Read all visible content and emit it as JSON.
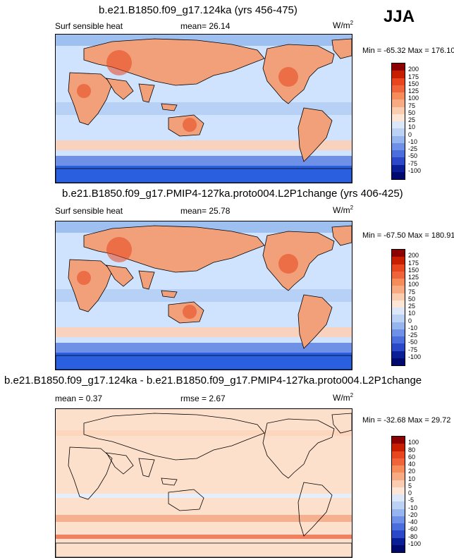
{
  "season": "JJA",
  "panels": [
    {
      "title": "b.e21.B1850.f09_g17.124ka (yrs 456-475)",
      "left_label": "Surf sensible heat",
      "mean_label": "mean=  26.14",
      "units": "W/m",
      "units_sup": "2",
      "minmax": "Min = -65.32 Max = 176.10",
      "levels": [
        "200",
        "175",
        "150",
        "125",
        "100",
        "75",
        "50",
        "25",
        "10",
        "0",
        "-10",
        "-25",
        "-50",
        "-75",
        "-100"
      ],
      "land_color": "#f2a07a",
      "ocean_color": "#cfe3ff",
      "south_color": "#2a5fe0"
    },
    {
      "title": "b.e21.B1850.f09_g17.PMIP4-127ka.proto004.L2P1change (yrs 406-425)",
      "left_label": "Surf sensible heat",
      "mean_label": "mean=  25.78",
      "units": "W/m",
      "units_sup": "2",
      "minmax": "Min = -67.50 Max = 180.91",
      "levels": [
        "200",
        "175",
        "150",
        "125",
        "100",
        "75",
        "50",
        "25",
        "10",
        "0",
        "-10",
        "-25",
        "-50",
        "-75",
        "-100"
      ],
      "land_color": "#f2a07a",
      "ocean_color": "#cfe3ff",
      "south_color": "#2a5fe0"
    },
    {
      "title": "b.e21.B1850.f09_g17.124ka - b.e21.B1850.f09_g17.PMIP4-127ka.proto004.L2P1change",
      "left_label": "mean =  0.37",
      "mean_label": "rmse =  2.67",
      "units": "W/m",
      "units_sup": "2",
      "minmax": "Min = -32.68 Max = 29.72",
      "levels": [
        "100",
        "80",
        "60",
        "40",
        "20",
        "10",
        "5",
        "0",
        "-5",
        "-10",
        "-20",
        "-40",
        "-60",
        "-80",
        "-100"
      ],
      "land_color": "#fde0cc",
      "ocean_color": "#fde0cc",
      "south_color": "#fde0cc"
    }
  ],
  "colorbar_colors": [
    "#8b0000",
    "#c81e00",
    "#e8461e",
    "#f0643c",
    "#f58c5a",
    "#f8aa82",
    "#fbcdb0",
    "#fde6d6",
    "#dce8fa",
    "#bcd2f5",
    "#96b4ee",
    "#6e90e6",
    "#4a6fdc",
    "#2a48c8",
    "#0a1e96",
    "#000a6e"
  ]
}
